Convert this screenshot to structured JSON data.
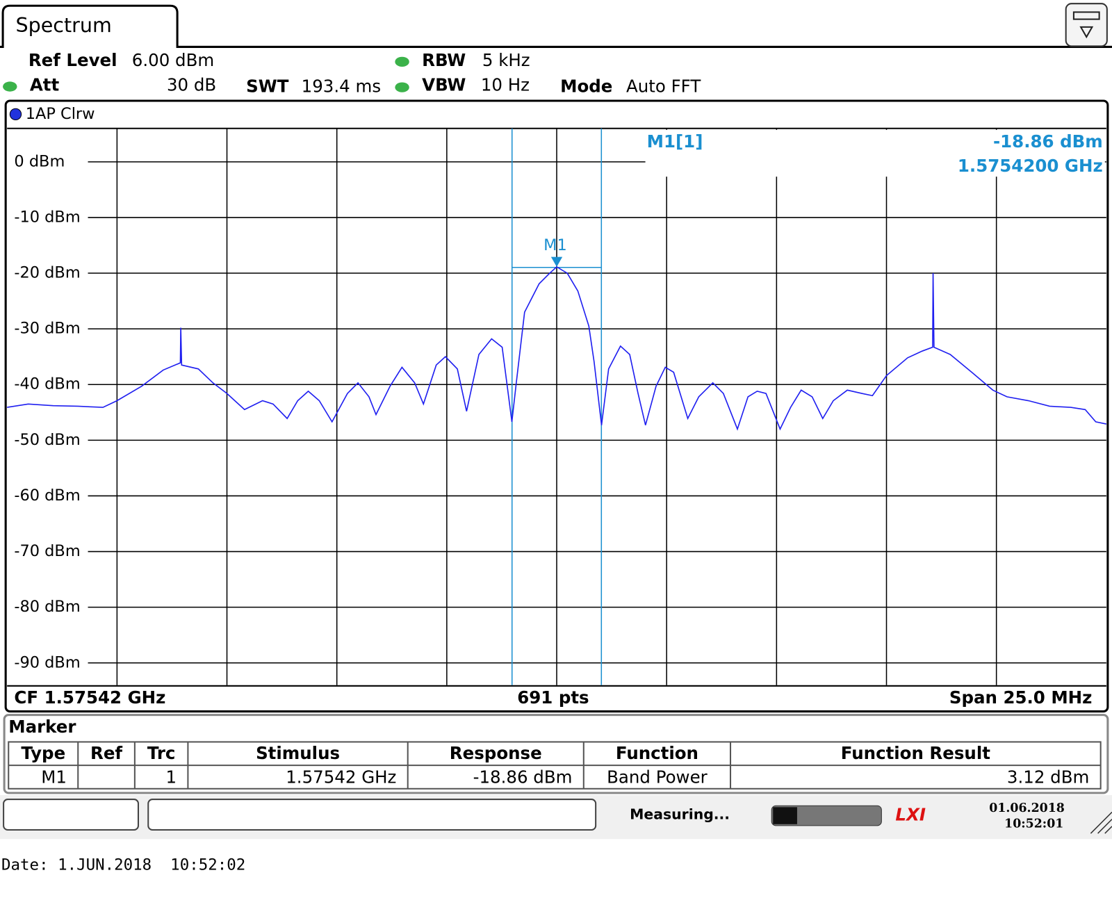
{
  "header": {
    "tab": "Spectrum",
    "ref_level_label": "Ref Level",
    "ref_level": "6.00 dBm",
    "att_label": "Att",
    "att": "30 dB",
    "swt_label": "SWT",
    "swt": "193.4 ms",
    "rbw_label": "RBW",
    "rbw": "5 kHz",
    "vbw_label": "VBW",
    "vbw": "10 Hz",
    "mode_label": "Mode",
    "mode": "Auto FFT"
  },
  "spectrum": {
    "type": "line",
    "trace_label": "1AP Clrw",
    "color": "#1f1ff0",
    "grid": true,
    "xlim": [
      1562.92,
      1587.92
    ],
    "ylim": [
      -94,
      6
    ],
    "yticks": [
      {
        "value": 0,
        "label": "0 dBm"
      },
      {
        "value": -10,
        "label": "-10 dBm"
      },
      {
        "value": -20,
        "label": "-20 dBm"
      },
      {
        "value": -30,
        "label": "-30 dBm"
      },
      {
        "value": -40,
        "label": "-40 dBm"
      },
      {
        "value": -50,
        "label": "-50 dBm"
      },
      {
        "value": -60,
        "label": "-60 dBm"
      },
      {
        "value": -70,
        "label": "-70 dBm"
      },
      {
        "value": -80,
        "label": "-80 dBm"
      },
      {
        "value": -90,
        "label": "-90 dBm"
      }
    ],
    "x": [
      1562.92,
      1563.4,
      1563.97,
      1564.53,
      1565.1,
      1565.42,
      1565.98,
      1566.47,
      1566.86,
      1566.87,
      1566.89,
      1567.27,
      1567.6,
      1567.92,
      1568.32,
      1568.73,
      1568.97,
      1569.29,
      1569.53,
      1569.77,
      1570.02,
      1570.31,
      1570.66,
      1570.9,
      1571.15,
      1571.31,
      1571.63,
      1571.9,
      1572.19,
      1572.39,
      1572.68,
      1572.89,
      1573.16,
      1573.37,
      1573.65,
      1573.94,
      1574.18,
      1574.4,
      1574.5,
      1574.69,
      1575.02,
      1575.26,
      1575.42,
      1575.66,
      1575.9,
      1576.15,
      1576.27,
      1576.44,
      1576.6,
      1576.87,
      1577.08,
      1577.27,
      1577.44,
      1577.68,
      1577.89,
      1578.08,
      1578.4,
      1578.65,
      1578.97,
      1579.21,
      1579.53,
      1579.77,
      1579.98,
      1580.18,
      1580.5,
      1580.74,
      1580.98,
      1581.23,
      1581.47,
      1581.71,
      1582.03,
      1582.36,
      1582.6,
      1582.92,
      1583.4,
      1583.73,
      1583.97,
      1583.98,
      1584.0,
      1584.37,
      1584.86,
      1585.34,
      1585.66,
      1586.15,
      1586.63,
      1587.11,
      1587.44,
      1587.68,
      1587.92
    ],
    "values": [
      -44.1,
      -43.5,
      -43.8,
      -43.9,
      -44.1,
      -42.9,
      -40.3,
      -37.4,
      -36.1,
      -29.8,
      -36.5,
      -37.2,
      -39.7,
      -41.6,
      -44.5,
      -42.9,
      -43.5,
      -46.1,
      -42.9,
      -41.2,
      -42.9,
      -46.7,
      -41.6,
      -39.7,
      -42.2,
      -45.4,
      -40.3,
      -36.9,
      -39.7,
      -43.5,
      -36.5,
      -35.0,
      -37.2,
      -44.8,
      -34.6,
      -31.8,
      -33.3,
      -46.7,
      -39.7,
      -27.0,
      -21.9,
      -20.0,
      -18.86,
      -20.0,
      -23.2,
      -29.5,
      -35.9,
      -47.3,
      -37.2,
      -33.1,
      -34.6,
      -41.6,
      -47.3,
      -40.3,
      -36.9,
      -37.8,
      -46.1,
      -42.2,
      -39.7,
      -41.6,
      -48.0,
      -42.2,
      -41.2,
      -41.6,
      -48.0,
      -44.1,
      -41.0,
      -42.2,
      -46.1,
      -42.9,
      -41.0,
      -41.6,
      -42.0,
      -38.4,
      -35.2,
      -34.0,
      -33.3,
      -20.0,
      -33.3,
      -34.6,
      -37.8,
      -41.0,
      -42.2,
      -42.9,
      -43.9,
      -44.1,
      -44.5,
      -46.7,
      -47.1
    ],
    "marker": {
      "label": "M1",
      "x": 1575.42,
      "y": -18.86,
      "color": "#1a8fd0"
    },
    "readout": {
      "name": "M1[1]",
      "level": "-18.86 dBm",
      "freq": "1.5754200 GHz"
    },
    "footer": {
      "cf": "CF 1.57542 GHz",
      "points": "691 pts",
      "span": "Span 25.0 MHz"
    }
  },
  "marker_table": {
    "title": "Marker",
    "columns": [
      "Type",
      "Ref",
      "Trc",
      "Stimulus",
      "Response",
      "Function",
      "Function Result"
    ],
    "rows": [
      {
        "type": "M1",
        "trc": "1",
        "stimulus": "1.57542 GHz",
        "response": "-18.86 dBm",
        "function": "Band Power",
        "result": "3.12 dBm"
      }
    ]
  },
  "status": {
    "state": "Measuring...",
    "date": "01.06.2018",
    "time": "10:52:01"
  },
  "date_line": "Date: 1.JUN.2018  10:52:02"
}
